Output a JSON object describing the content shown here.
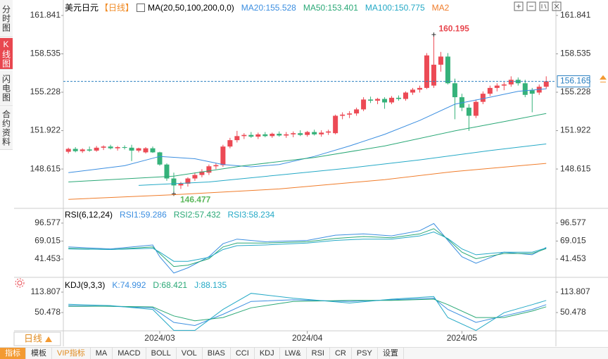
{
  "header": {
    "symbol": "美元日元",
    "period": "【日线】",
    "ma_params": "MA(20,50,100,200,0,0)"
  },
  "sidebar": [
    "分时图",
    "K线图",
    "闪电图",
    "合约资料"
  ],
  "period_button": "日线",
  "toolbar": [
    "指标",
    "模板",
    "VIP指标",
    "MA",
    "MACD",
    "BOLL",
    "VOL",
    "BIAS",
    "CCI",
    "KDJ",
    "LW&",
    "RSI",
    "CR",
    "PSY",
    "设置"
  ],
  "chart_data": [
    {
      "type": "candlestick",
      "categories": [
        null,
        null,
        null,
        null,
        null,
        null,
        null,
        null,
        null,
        null,
        null,
        null,
        null,
        "2024/03",
        null,
        null,
        null,
        null,
        null,
        null,
        null,
        null,
        null,
        null,
        null,
        null,
        null,
        null,
        null,
        null,
        null,
        null,
        null,
        null,
        "2024/04",
        null,
        null,
        null,
        null,
        null,
        null,
        null,
        null,
        null,
        null,
        null,
        null,
        null,
        null,
        null,
        null,
        null,
        null,
        null,
        null,
        null,
        "2024/05",
        null,
        null,
        null,
        null,
        null,
        null,
        null,
        null,
        null,
        null,
        null,
        null
      ],
      "ohlc": [
        [
          150.1,
          150.45,
          149.95,
          150.35
        ],
        [
          150.35,
          150.5,
          150.05,
          150.15
        ],
        [
          150.15,
          150.4,
          150.0,
          150.3
        ],
        [
          150.3,
          150.55,
          150.1,
          150.2
        ],
        [
          150.2,
          150.6,
          150.1,
          150.45
        ],
        [
          150.45,
          150.65,
          150.25,
          150.55
        ],
        [
          150.55,
          150.7,
          150.3,
          150.4
        ],
        [
          150.4,
          150.6,
          150.2,
          150.5
        ],
        [
          150.5,
          150.65,
          150.3,
          150.45
        ],
        [
          150.45,
          150.7,
          149.3,
          150.2
        ],
        [
          150.2,
          150.45,
          150.05,
          150.4
        ],
        [
          150.05,
          150.5,
          149.95,
          150.4
        ],
        [
          150.4,
          150.55,
          150.0,
          150.05
        ],
        [
          150.05,
          150.1,
          148.9,
          149.0
        ],
        [
          149.0,
          149.1,
          147.6,
          147.8
        ],
        [
          147.8,
          148.3,
          146.477,
          147.2
        ],
        [
          147.2,
          147.5,
          146.9,
          147.35
        ],
        [
          147.35,
          147.9,
          147.1,
          147.8
        ],
        [
          147.8,
          148.3,
          147.6,
          148.1
        ],
        [
          148.1,
          148.6,
          147.9,
          148.4
        ],
        [
          148.3,
          149.0,
          148.1,
          148.85
        ],
        [
          148.85,
          149.1,
          148.6,
          148.95
        ],
        [
          148.95,
          150.7,
          148.8,
          150.55
        ],
        [
          150.55,
          151.3,
          150.4,
          151.1
        ],
        [
          151.1,
          151.9,
          150.9,
          151.45
        ],
        [
          151.45,
          151.7,
          151.2,
          151.55
        ],
        [
          151.55,
          151.8,
          151.3,
          151.4
        ],
        [
          151.4,
          151.75,
          151.2,
          151.6
        ],
        [
          151.6,
          151.8,
          151.35,
          151.45
        ],
        [
          151.45,
          151.75,
          151.3,
          151.65
        ],
        [
          151.65,
          151.85,
          151.4,
          151.5
        ],
        [
          151.5,
          151.8,
          151.3,
          151.6
        ],
        [
          151.6,
          151.85,
          151.35,
          151.7
        ],
        [
          151.7,
          151.95,
          151.45,
          151.55
        ],
        [
          151.55,
          151.9,
          151.4,
          151.8
        ],
        [
          151.8,
          152.0,
          151.5,
          151.6
        ],
        [
          151.6,
          151.95,
          151.4,
          151.75
        ],
        [
          151.75,
          152.0,
          151.55,
          151.85
        ],
        [
          151.7,
          153.3,
          151.6,
          153.2
        ],
        [
          153.2,
          153.5,
          152.9,
          153.3
        ],
        [
          153.3,
          153.6,
          153.0,
          153.4
        ],
        [
          153.4,
          153.9,
          153.2,
          153.75
        ],
        [
          153.75,
          154.8,
          153.6,
          154.6
        ],
        [
          154.6,
          154.85,
          154.3,
          154.5
        ],
        [
          154.5,
          154.75,
          154.2,
          154.65
        ],
        [
          154.65,
          154.8,
          153.8,
          154.35
        ],
        [
          154.35,
          154.9,
          154.2,
          154.75
        ],
        [
          154.75,
          154.95,
          154.5,
          154.65
        ],
        [
          154.65,
          155.3,
          154.5,
          155.2
        ],
        [
          155.2,
          155.6,
          155.0,
          155.45
        ],
        [
          155.45,
          155.8,
          155.2,
          155.6
        ],
        [
          155.6,
          158.6,
          155.5,
          158.4
        ],
        [
          155.8,
          160.195,
          155.6,
          157.6
        ],
        [
          157.6,
          158.7,
          157.0,
          158.3
        ],
        [
          158.3,
          158.6,
          155.9,
          156.0
        ],
        [
          156.0,
          156.4,
          152.9,
          154.8
        ],
        [
          154.8,
          155.1,
          153.6,
          153.9
        ],
        [
          153.9,
          154.2,
          151.9,
          153.2
        ],
        [
          153.2,
          154.6,
          153.0,
          154.4
        ],
        [
          154.4,
          155.3,
          154.2,
          155.1
        ],
        [
          155.1,
          155.8,
          154.9,
          155.6
        ],
        [
          155.6,
          156.0,
          155.3,
          155.8
        ],
        [
          155.8,
          156.1,
          155.4,
          155.9
        ],
        [
          155.9,
          156.6,
          155.7,
          156.3
        ],
        [
          156.3,
          156.5,
          155.8,
          156.0
        ],
        [
          156.0,
          156.3,
          154.8,
          155.0
        ],
        [
          155.4,
          155.6,
          153.5,
          155.1
        ],
        [
          155.2,
          155.9,
          155.0,
          155.7
        ],
        [
          155.7,
          156.6,
          155.5,
          156.165
        ]
      ],
      "up_color": "#ec4a55",
      "down_color": "#35b27a",
      "xlim": [
        -0.72,
        69.38
      ],
      "ylim": [
        145.225,
        162.93
      ],
      "yticks": [
        161.841,
        158.535,
        155.228,
        151.922,
        148.615
      ],
      "grid": false,
      "overlays": [
        {
          "name": "MA20:155.528",
          "color": "#3b8ee0",
          "x": [
            0,
            8,
            13,
            18,
            22,
            26,
            30,
            35,
            40,
            45,
            50,
            55,
            60,
            64,
            68
          ],
          "values": [
            148.3,
            148.9,
            149.7,
            149.5,
            149.0,
            148.8,
            149.0,
            149.7,
            150.6,
            151.6,
            152.8,
            154.2,
            154.8,
            155.3,
            155.528
          ]
        },
        {
          "name": "MA50:153.401",
          "color": "#2aa876",
          "x": [
            0,
            15,
            25,
            35,
            45,
            55,
            62,
            68
          ],
          "values": [
            147.5,
            148.0,
            148.9,
            149.6,
            150.6,
            151.9,
            152.7,
            153.401
          ]
        },
        {
          "name": "MA100:150.775",
          "color": "#24a9c6",
          "x": [
            10,
            20,
            30,
            40,
            50,
            60,
            68
          ],
          "values": [
            147.2,
            147.5,
            148.1,
            148.7,
            149.4,
            150.2,
            150.775
          ]
        },
        {
          "name": "MA2",
          "color": "#f07c2a",
          "x": [
            0,
            15,
            30,
            45,
            55,
            68
          ],
          "values": [
            146.0,
            146.4,
            146.9,
            147.7,
            148.4,
            149.1
          ]
        }
      ],
      "high_label": 160.195,
      "low_label": 146.477,
      "last_price": 156.165
    },
    {
      "type": "line",
      "title": "RSI(6,12,24)",
      "xlim": [
        -0.72,
        69.38
      ],
      "ylim": [
        14.45,
        118.1
      ],
      "yticks": [
        96.577,
        69.015,
        41.453
      ],
      "grid": false,
      "series": [
        {
          "name": "RSI1:59.286",
          "color": "#3b8ee0",
          "x": [
            0,
            6,
            12,
            13,
            15,
            17,
            20,
            22,
            24,
            28,
            34,
            38,
            42,
            46,
            50,
            52,
            54,
            56,
            58,
            62,
            66,
            68
          ],
          "values": [
            60,
            57,
            63,
            45,
            20,
            28,
            45,
            65,
            72,
            68,
            70,
            78,
            80,
            77,
            85,
            96,
            70,
            45,
            35,
            52,
            48,
            59.286
          ]
        },
        {
          "name": "RSI2:57.432",
          "color": "#2aa876",
          "x": [
            0,
            6,
            12,
            13,
            15,
            17,
            20,
            22,
            24,
            28,
            34,
            38,
            42,
            46,
            50,
            52,
            54,
            56,
            58,
            62,
            66,
            68
          ],
          "values": [
            58,
            56,
            60,
            50,
            30,
            32,
            42,
            60,
            66,
            66,
            68,
            73,
            76,
            74,
            80,
            88,
            72,
            52,
            42,
            50,
            50,
            57.432
          ]
        },
        {
          "name": "RSI3:58.234",
          "color": "#24a9c6",
          "x": [
            0,
            6,
            12,
            13,
            15,
            17,
            20,
            22,
            24,
            28,
            34,
            38,
            42,
            46,
            50,
            52,
            54,
            56,
            58,
            62,
            66,
            68
          ],
          "values": [
            57,
            56,
            58,
            52,
            38,
            38,
            44,
            56,
            62,
            63,
            66,
            70,
            72,
            72,
            77,
            83,
            73,
            57,
            48,
            52,
            52,
            58.234
          ]
        }
      ]
    },
    {
      "type": "line",
      "title": "KDJ(9,3,3)",
      "xlim": [
        -0.72,
        69.38
      ],
      "ylim": [
        -6.3,
        153.1
      ],
      "yticks": [
        113.807,
        50.478
      ],
      "grid": false,
      "series": [
        {
          "name": "K:74.992",
          "color": "#3b8ee0",
          "x": [
            0,
            6,
            12,
            15,
            18,
            22,
            26,
            32,
            40,
            46,
            52,
            54,
            58,
            62,
            66,
            68
          ],
          "values": [
            72,
            70,
            65,
            20,
            10,
            45,
            85,
            90,
            85,
            90,
            95,
            60,
            20,
            40,
            60,
            74.992
          ]
        },
        {
          "name": "D:68.421",
          "color": "#2aa876",
          "x": [
            0,
            6,
            12,
            15,
            18,
            22,
            26,
            32,
            40,
            46,
            52,
            54,
            58,
            62,
            66,
            68
          ],
          "values": [
            70,
            70,
            68,
            40,
            25,
            35,
            65,
            85,
            88,
            88,
            92,
            75,
            35,
            35,
            55,
            68.421
          ]
        },
        {
          "name": "J:88.135",
          "color": "#24a9c6",
          "x": [
            0,
            6,
            12,
            15,
            18,
            22,
            26,
            32,
            40,
            46,
            52,
            54,
            58,
            62,
            66,
            68
          ],
          "values": [
            76,
            72,
            60,
            -5,
            -5,
            60,
            110,
            95,
            80,
            92,
            100,
            35,
            -5,
            50,
            75,
            88.135
          ]
        }
      ]
    }
  ]
}
